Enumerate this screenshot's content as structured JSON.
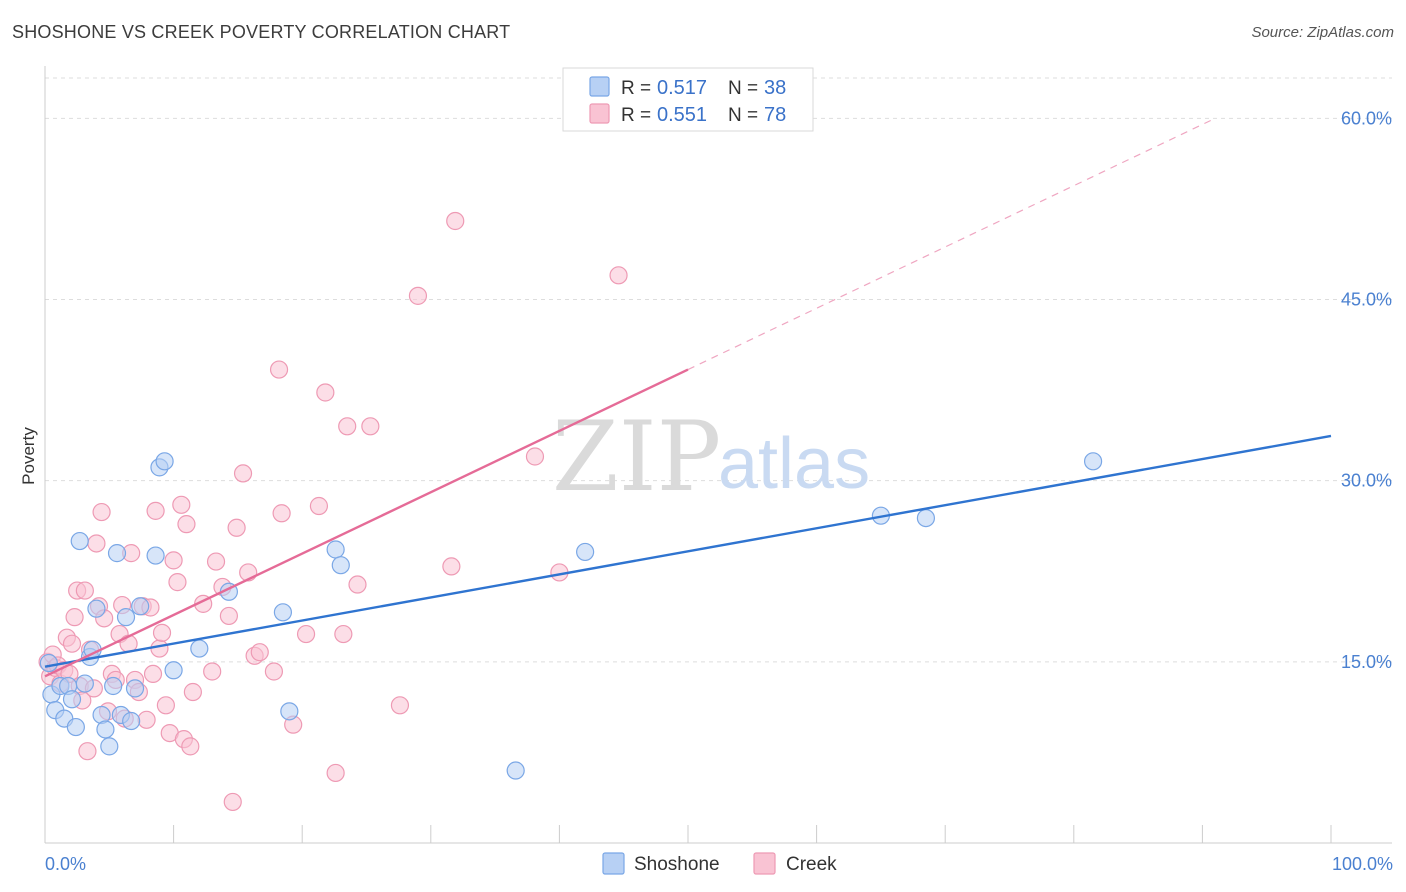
{
  "title": "SHOSHONE VS CREEK POVERTY CORRELATION CHART",
  "source": "Source: ZipAtlas.com",
  "watermark": {
    "zip": "ZIP",
    "atlas": "atlas"
  },
  "colors": {
    "shoshone_fill": "#b7d0f4",
    "shoshone_stroke": "#7aa7e6",
    "shoshone_line": "#2f74d0",
    "creek_fill": "#f9c3d3",
    "creek_stroke": "#ee9ab4",
    "creek_line": "#e56b97",
    "tick_text": "#4a80d0",
    "grid": "#dddddd"
  },
  "legend_top": {
    "rows": [
      {
        "r_label": "R = ",
        "r_value": "0.517",
        "n_label": "N = ",
        "n_value": "38"
      },
      {
        "r_label": "R = ",
        "r_value": "0.551",
        "n_label": "N = ",
        "n_value": "78"
      }
    ]
  },
  "legend_bottom": {
    "items": [
      "Shoshone",
      "Creek"
    ]
  },
  "chart_data": {
    "type": "scatter",
    "title": "SHOSHONE VS CREEK POVERTY CORRELATION CHART",
    "xlabel": "",
    "ylabel": "Poverty",
    "xlim": [
      0,
      100
    ],
    "ylim": [
      0,
      64
    ],
    "x_tick_labels": [
      "0.0%",
      "100.0%"
    ],
    "y_ticks": [
      15,
      30,
      45,
      60
    ],
    "y_tick_labels": [
      "15.0%",
      "30.0%",
      "45.0%",
      "60.0%"
    ],
    "grid": true,
    "legend_position": "top-center",
    "series": [
      {
        "name": "Shoshone",
        "r": 0.517,
        "n": 38,
        "trend": {
          "x": [
            0,
            100
          ],
          "y": [
            14.6,
            33.7
          ],
          "dashed_extension": false
        },
        "points": [
          [
            0.3,
            14.9
          ],
          [
            0.5,
            12.3
          ],
          [
            0.8,
            11.0
          ],
          [
            1.2,
            13.0
          ],
          [
            1.5,
            10.3
          ],
          [
            1.8,
            13.0
          ],
          [
            2.1,
            11.9
          ],
          [
            2.4,
            9.6
          ],
          [
            2.7,
            25.0
          ],
          [
            3.1,
            13.2
          ],
          [
            3.5,
            15.4
          ],
          [
            3.7,
            16.0
          ],
          [
            4.0,
            19.4
          ],
          [
            4.4,
            10.6
          ],
          [
            4.7,
            9.4
          ],
          [
            5.0,
            8.0
          ],
          [
            5.3,
            13.0
          ],
          [
            5.6,
            24.0
          ],
          [
            5.9,
            10.6
          ],
          [
            6.3,
            18.7
          ],
          [
            6.7,
            10.1
          ],
          [
            7.0,
            12.8
          ],
          [
            7.4,
            19.6
          ],
          [
            8.6,
            23.8
          ],
          [
            8.9,
            31.1
          ],
          [
            9.3,
            31.6
          ],
          [
            10.0,
            14.3
          ],
          [
            12.0,
            16.1
          ],
          [
            14.3,
            20.8
          ],
          [
            18.5,
            19.1
          ],
          [
            19.0,
            10.9
          ],
          [
            22.6,
            24.3
          ],
          [
            23.0,
            23.0
          ],
          [
            36.6,
            6.0
          ],
          [
            42.0,
            24.1
          ],
          [
            65.0,
            27.1
          ],
          [
            68.5,
            26.9
          ],
          [
            81.5,
            31.6
          ]
        ]
      },
      {
        "name": "Creek",
        "r": 0.551,
        "n": 78,
        "trend": {
          "x": [
            0,
            50
          ],
          "y": [
            13.8,
            39.2
          ],
          "dashed_extension": true,
          "extension_to": [
            91,
            60
          ]
        },
        "points": [
          [
            0.2,
            15.0
          ],
          [
            0.4,
            13.8
          ],
          [
            0.6,
            15.6
          ],
          [
            0.8,
            14.5
          ],
          [
            1.0,
            14.7
          ],
          [
            1.2,
            13.2
          ],
          [
            1.5,
            14.3
          ],
          [
            1.7,
            17.0
          ],
          [
            1.9,
            14.0
          ],
          [
            2.1,
            16.5
          ],
          [
            2.3,
            18.7
          ],
          [
            2.5,
            20.9
          ],
          [
            2.7,
            13.0
          ],
          [
            2.9,
            11.8
          ],
          [
            3.1,
            20.9
          ],
          [
            3.3,
            7.6
          ],
          [
            3.5,
            16.0
          ],
          [
            3.8,
            12.8
          ],
          [
            4.0,
            24.8
          ],
          [
            4.2,
            19.6
          ],
          [
            4.4,
            27.4
          ],
          [
            4.6,
            18.6
          ],
          [
            4.9,
            10.9
          ],
          [
            5.2,
            14.0
          ],
          [
            5.5,
            13.5
          ],
          [
            5.8,
            17.3
          ],
          [
            6.0,
            19.7
          ],
          [
            6.2,
            10.3
          ],
          [
            6.5,
            16.5
          ],
          [
            6.7,
            24.0
          ],
          [
            7.0,
            13.5
          ],
          [
            7.3,
            12.5
          ],
          [
            7.6,
            19.6
          ],
          [
            7.9,
            10.2
          ],
          [
            8.2,
            19.5
          ],
          [
            8.4,
            14.0
          ],
          [
            8.6,
            27.5
          ],
          [
            8.9,
            16.1
          ],
          [
            9.1,
            17.4
          ],
          [
            9.4,
            11.4
          ],
          [
            9.7,
            9.1
          ],
          [
            10.0,
            23.4
          ],
          [
            10.3,
            21.6
          ],
          [
            10.6,
            28.0
          ],
          [
            10.8,
            8.6
          ],
          [
            11.0,
            26.4
          ],
          [
            11.3,
            8.0
          ],
          [
            11.5,
            12.5
          ],
          [
            12.3,
            19.8
          ],
          [
            13.0,
            14.2
          ],
          [
            13.3,
            23.3
          ],
          [
            13.8,
            21.2
          ],
          [
            14.3,
            18.8
          ],
          [
            14.6,
            3.4
          ],
          [
            14.9,
            26.1
          ],
          [
            15.4,
            30.6
          ],
          [
            15.8,
            22.4
          ],
          [
            16.3,
            15.5
          ],
          [
            16.7,
            15.8
          ],
          [
            17.8,
            14.2
          ],
          [
            18.2,
            39.2
          ],
          [
            18.4,
            27.3
          ],
          [
            19.3,
            9.8
          ],
          [
            20.3,
            17.3
          ],
          [
            21.3,
            27.9
          ],
          [
            21.8,
            37.3
          ],
          [
            22.6,
            5.8
          ],
          [
            23.2,
            17.3
          ],
          [
            23.5,
            34.5
          ],
          [
            24.3,
            21.4
          ],
          [
            25.3,
            34.5
          ],
          [
            27.6,
            11.4
          ],
          [
            29.0,
            45.3
          ],
          [
            31.6,
            22.9
          ],
          [
            31.9,
            51.5
          ],
          [
            38.1,
            32.0
          ],
          [
            40.0,
            22.4
          ],
          [
            44.6,
            47.0
          ]
        ]
      }
    ]
  }
}
